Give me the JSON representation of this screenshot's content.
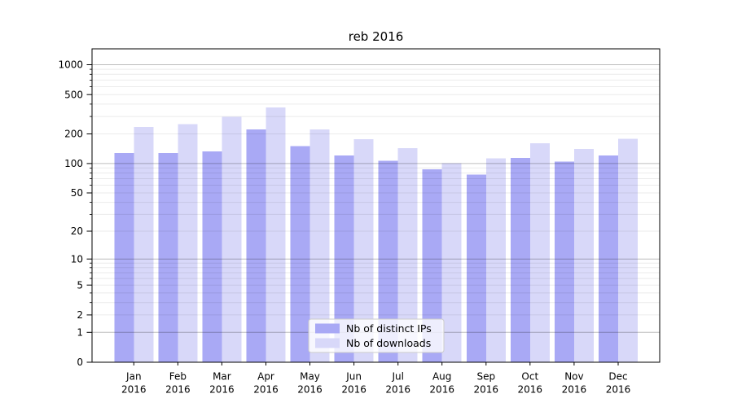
{
  "chart_data": {
    "type": "bar",
    "title": "reb 2016",
    "categories": [
      "Jan",
      "Feb",
      "Mar",
      "Apr",
      "May",
      "Jun",
      "Jul",
      "Aug",
      "Sep",
      "Oct",
      "Nov",
      "Dec"
    ],
    "category_year": "2016",
    "series": [
      {
        "name": "Nb of distinct IPs",
        "color": "#a9a9f5",
        "values": [
          128,
          128,
          133,
          222,
          150,
          121,
          107,
          87,
          77,
          114,
          105,
          121
        ]
      },
      {
        "name": "Nb of downloads",
        "color": "#d8d8f9",
        "values": [
          236,
          250,
          298,
          370,
          222,
          177,
          143,
          101,
          113,
          161,
          141,
          178
        ]
      }
    ],
    "y_axis": {
      "scale": "log1p",
      "ticks": [
        0,
        1,
        2,
        5,
        10,
        20,
        50,
        100,
        200,
        500,
        1000
      ],
      "tick_labels": [
        "0",
        "1",
        "2",
        "5",
        "10",
        "20",
        "50",
        "100",
        "200",
        "500",
        "1000"
      ],
      "ylim": [
        0,
        1450
      ]
    },
    "legend": {
      "entries": [
        "Nb of distinct IPs",
        "Nb of downloads"
      ],
      "position": "bottom-center"
    },
    "grid": "on",
    "colors": {
      "major_grid": "rgba(0,0,0,0.26)",
      "minor_grid": "rgba(0,0,0,0.08)",
      "spine": "#000000",
      "legend_border": "#cccccc",
      "legend_bg": "rgba(255,255,255,0.8)"
    }
  }
}
